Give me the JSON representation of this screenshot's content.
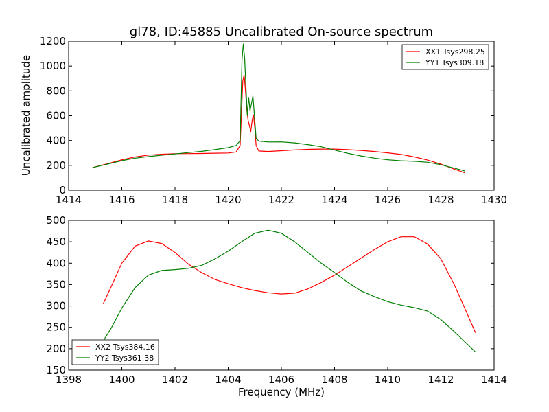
{
  "figure": {
    "title": "gl78, ID:45885 Uncalibrated On-source spectrum",
    "xlabel": "Frequency (MHz)"
  },
  "colors": {
    "red": "#ff0000",
    "green": "#008000"
  },
  "chart_data": [
    {
      "type": "line",
      "ylabel": "Uncalibrated amplitude",
      "xlim": [
        1414,
        1430
      ],
      "ylim": [
        0,
        1200
      ],
      "xticks": [
        1414,
        1416,
        1418,
        1420,
        1422,
        1424,
        1426,
        1428,
        1430
      ],
      "yticks": [
        0,
        200,
        400,
        600,
        800,
        1000,
        1200
      ],
      "legend": "top-right",
      "series": [
        {
          "name": "XX1 Tsys298.25",
          "color": "#ff0000",
          "points": [
            [
              1414.9,
              183
            ],
            [
              1415.5,
              215
            ],
            [
              1416.0,
              245
            ],
            [
              1416.5,
              268
            ],
            [
              1417.0,
              283
            ],
            [
              1417.5,
              290
            ],
            [
              1418.0,
              294
            ],
            [
              1418.5,
              295
            ],
            [
              1419.0,
              296
            ],
            [
              1419.5,
              298
            ],
            [
              1420.0,
              300
            ],
            [
              1420.3,
              308
            ],
            [
              1420.45,
              360
            ],
            [
              1420.55,
              880
            ],
            [
              1420.6,
              930
            ],
            [
              1420.65,
              800
            ],
            [
              1420.7,
              650
            ],
            [
              1420.75,
              560
            ],
            [
              1420.8,
              520
            ],
            [
              1420.85,
              470
            ],
            [
              1420.9,
              560
            ],
            [
              1420.95,
              610
            ],
            [
              1421.0,
              500
            ],
            [
              1421.05,
              360
            ],
            [
              1421.15,
              316
            ],
            [
              1421.5,
              312
            ],
            [
              1422.0,
              318
            ],
            [
              1422.5,
              324
            ],
            [
              1423.0,
              329
            ],
            [
              1423.5,
              331
            ],
            [
              1424.0,
              331
            ],
            [
              1424.5,
              327
            ],
            [
              1425.0,
              320
            ],
            [
              1425.5,
              312
            ],
            [
              1426.0,
              301
            ],
            [
              1426.5,
              288
            ],
            [
              1427.0,
              268
            ],
            [
              1427.5,
              243
            ],
            [
              1428.0,
              210
            ],
            [
              1428.5,
              170
            ],
            [
              1428.9,
              140
            ]
          ]
        },
        {
          "name": "YY1 Tsys309.18",
          "color": "#008000",
          "points": [
            [
              1414.9,
              182
            ],
            [
              1415.5,
              212
            ],
            [
              1416.0,
              238
            ],
            [
              1416.5,
              258
            ],
            [
              1417.0,
              271
            ],
            [
              1417.5,
              282
            ],
            [
              1418.0,
              292
            ],
            [
              1418.5,
              303
            ],
            [
              1419.0,
              313
            ],
            [
              1419.5,
              327
            ],
            [
              1420.0,
              343
            ],
            [
              1420.3,
              360
            ],
            [
              1420.45,
              400
            ],
            [
              1420.52,
              1050
            ],
            [
              1420.57,
              1180
            ],
            [
              1420.62,
              1060
            ],
            [
              1420.67,
              820
            ],
            [
              1420.72,
              600
            ],
            [
              1420.77,
              750
            ],
            [
              1420.82,
              640
            ],
            [
              1420.87,
              690
            ],
            [
              1420.93,
              760
            ],
            [
              1420.98,
              620
            ],
            [
              1421.05,
              420
            ],
            [
              1421.15,
              395
            ],
            [
              1421.5,
              388
            ],
            [
              1422.0,
              389
            ],
            [
              1422.5,
              381
            ],
            [
              1423.0,
              367
            ],
            [
              1423.5,
              350
            ],
            [
              1424.0,
              323
            ],
            [
              1424.5,
              297
            ],
            [
              1425.0,
              276
            ],
            [
              1425.5,
              258
            ],
            [
              1426.0,
              245
            ],
            [
              1426.5,
              237
            ],
            [
              1427.0,
              233
            ],
            [
              1427.5,
              225
            ],
            [
              1428.0,
              205
            ],
            [
              1428.5,
              178
            ],
            [
              1428.9,
              155
            ]
          ]
        }
      ]
    },
    {
      "type": "line",
      "xlim": [
        1398,
        1414
      ],
      "ylim": [
        150,
        500
      ],
      "xticks": [
        1398,
        1400,
        1402,
        1404,
        1406,
        1408,
        1410,
        1412,
        1414
      ],
      "yticks": [
        150,
        200,
        250,
        300,
        350,
        400,
        450,
        500
      ],
      "legend": "bottom-left",
      "series": [
        {
          "name": "XX2 Tsys384.16",
          "color": "#ff0000",
          "points": [
            [
              1399.3,
              305
            ],
            [
              1399.6,
              345
            ],
            [
              1400.0,
              400
            ],
            [
              1400.5,
              440
            ],
            [
              1401.0,
              452
            ],
            [
              1401.5,
              446
            ],
            [
              1402.0,
              425
            ],
            [
              1402.5,
              398
            ],
            [
              1403.0,
              378
            ],
            [
              1403.5,
              362
            ],
            [
              1404.0,
              352
            ],
            [
              1404.5,
              343
            ],
            [
              1405.0,
              336
            ],
            [
              1405.5,
              331
            ],
            [
              1406.0,
              328
            ],
            [
              1406.5,
              330
            ],
            [
              1407.0,
              340
            ],
            [
              1407.5,
              355
            ],
            [
              1408.0,
              372
            ],
            [
              1408.5,
              392
            ],
            [
              1409.0,
              412
            ],
            [
              1409.5,
              432
            ],
            [
              1410.0,
              450
            ],
            [
              1410.5,
              462
            ],
            [
              1411.0,
              462
            ],
            [
              1411.5,
              445
            ],
            [
              1412.0,
              410
            ],
            [
              1412.5,
              350
            ],
            [
              1413.0,
              280
            ],
            [
              1413.3,
              237
            ]
          ]
        },
        {
          "name": "YY2 Tsys361.38",
          "color": "#008000",
          "points": [
            [
              1399.3,
              218
            ],
            [
              1399.6,
              248
            ],
            [
              1400.0,
              295
            ],
            [
              1400.5,
              343
            ],
            [
              1401.0,
              372
            ],
            [
              1401.5,
              383
            ],
            [
              1402.0,
              385
            ],
            [
              1402.5,
              388
            ],
            [
              1403.0,
              395
            ],
            [
              1403.5,
              410
            ],
            [
              1404.0,
              428
            ],
            [
              1404.5,
              450
            ],
            [
              1405.0,
              470
            ],
            [
              1405.5,
              477
            ],
            [
              1406.0,
              470
            ],
            [
              1406.5,
              450
            ],
            [
              1407.0,
              425
            ],
            [
              1407.5,
              400
            ],
            [
              1408.0,
              378
            ],
            [
              1408.5,
              355
            ],
            [
              1409.0,
              335
            ],
            [
              1409.5,
              322
            ],
            [
              1410.0,
              310
            ],
            [
              1410.5,
              302
            ],
            [
              1411.0,
              296
            ],
            [
              1411.5,
              288
            ],
            [
              1412.0,
              268
            ],
            [
              1412.5,
              240
            ],
            [
              1413.0,
              210
            ],
            [
              1413.3,
              192
            ]
          ]
        }
      ]
    }
  ]
}
